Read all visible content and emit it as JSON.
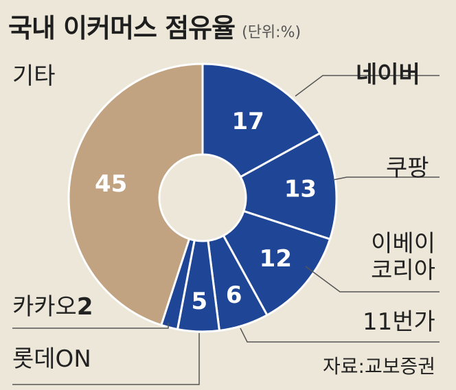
{
  "header": {
    "title": "국내 이커머스 점유율",
    "unit": "(단위:%)"
  },
  "chart_data": {
    "type": "pie",
    "title": "국내 이커머스 점유율",
    "unit": "%",
    "hole": "donut",
    "slices": [
      {
        "label": "네이버",
        "value": 17,
        "color": "#1f4696"
      },
      {
        "label": "쿠팡",
        "value": 13,
        "color": "#1f4696"
      },
      {
        "label": "이베이 코리아",
        "value": 12,
        "color": "#1f4696"
      },
      {
        "label": "11번가",
        "value": 6,
        "color": "#1f4696"
      },
      {
        "label": "롯데ON",
        "value": 5,
        "color": "#1f4696"
      },
      {
        "label": "카카오",
        "value": 2,
        "color": "#1f4696"
      },
      {
        "label": "기타",
        "value": 45,
        "color": "#c1a281"
      }
    ]
  },
  "labels": {
    "naver": "네이버",
    "coupang": "쿠팡",
    "ebay_line1": "이베이",
    "ebay_line2": "코리아",
    "elevenst": "11번가",
    "lotte": "롯데ON",
    "kakao": "카카오",
    "kakao_value": "2",
    "etc": "기타"
  },
  "source": "자료:교보증권"
}
